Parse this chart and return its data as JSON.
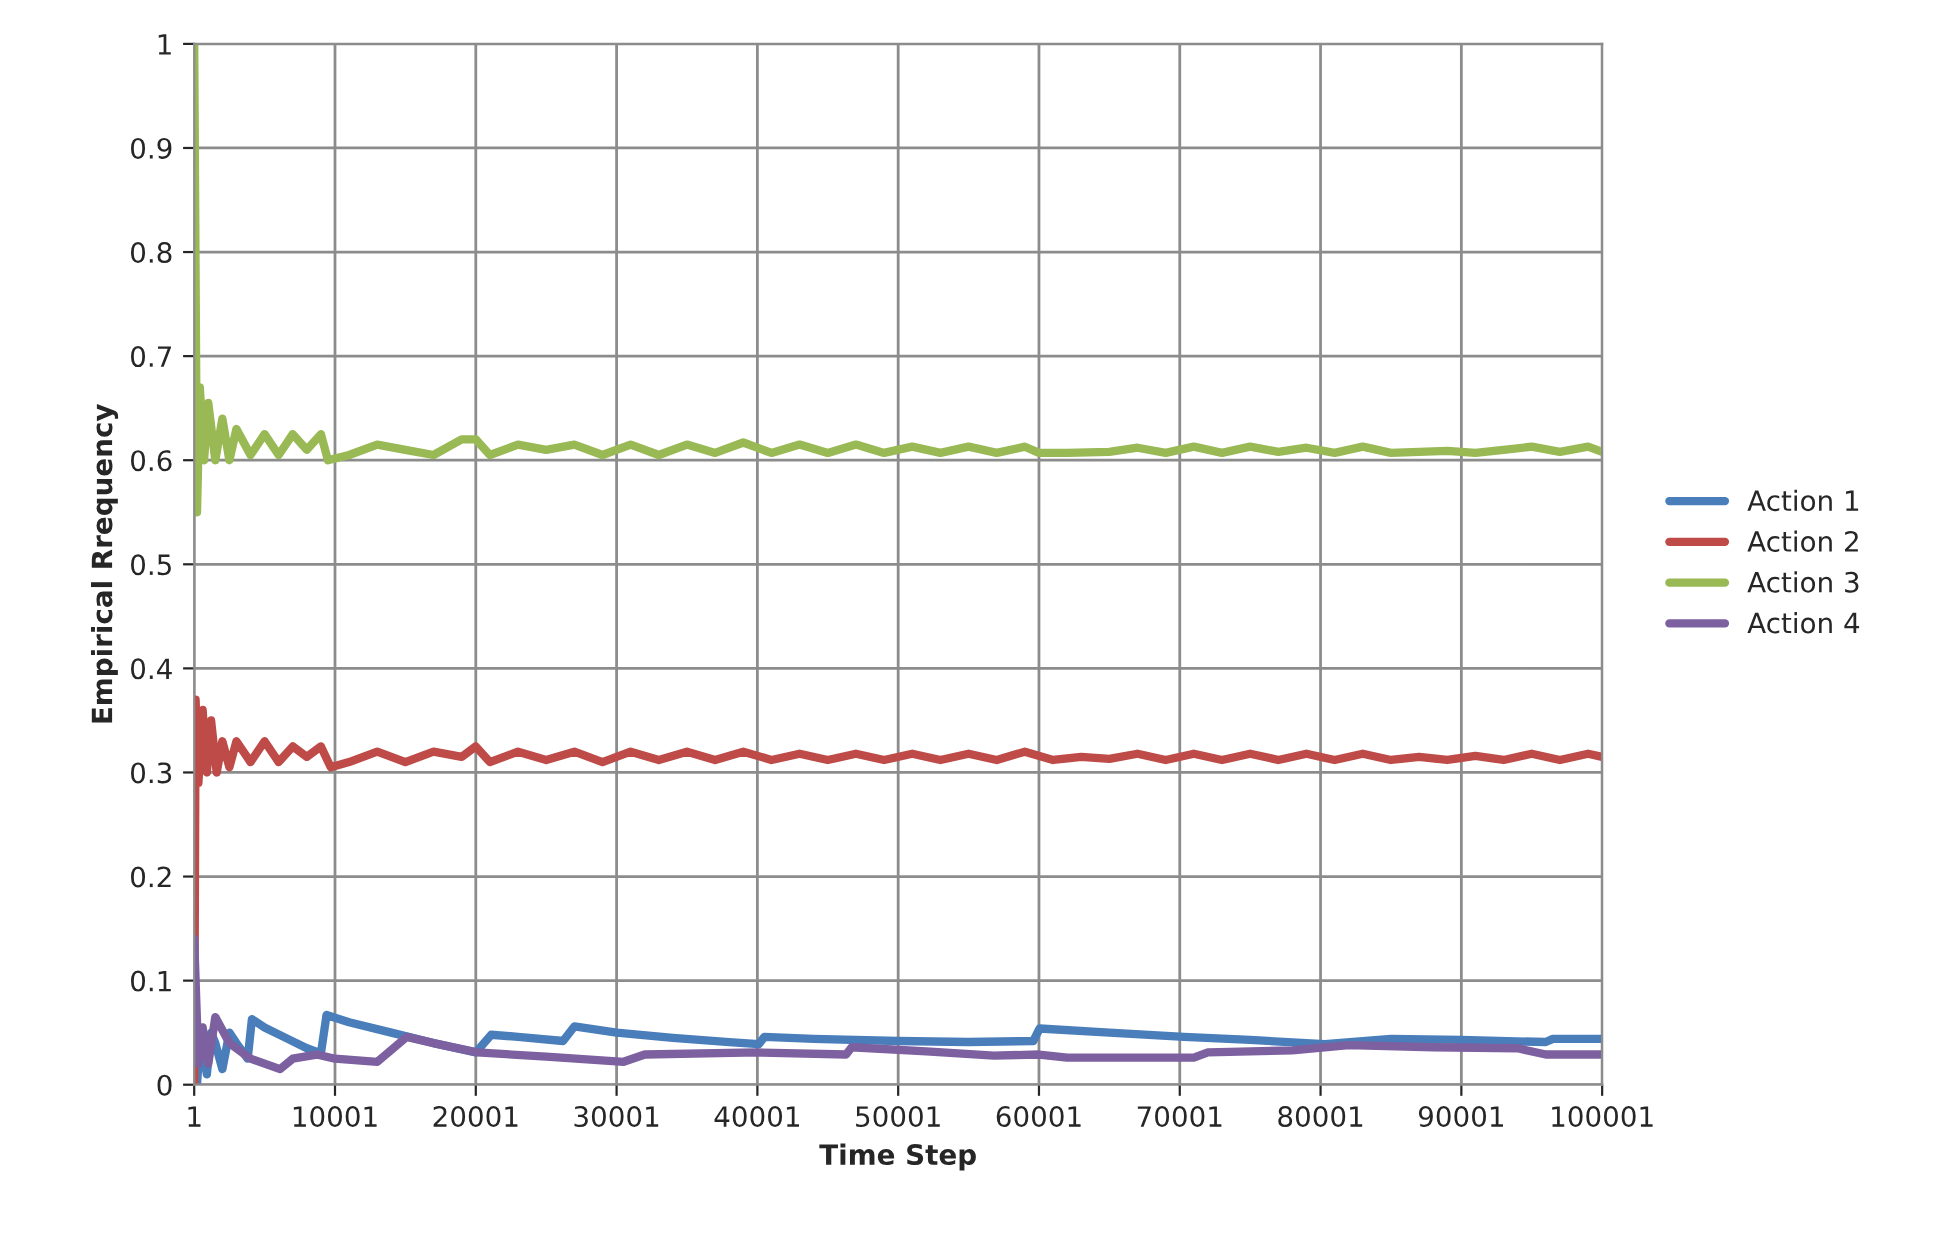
{
  "chart_data": {
    "type": "line",
    "xlabel": "Time Step",
    "ylabel": "Empirical Rrequency",
    "xlim": [
      1,
      100001
    ],
    "xticks": [
      1,
      10001,
      20001,
      30001,
      40001,
      50001,
      60001,
      70001,
      80001,
      90001,
      100001
    ],
    "ylim": [
      0,
      1
    ],
    "yticks": [
      0,
      0.1,
      0.2,
      0.3,
      0.4,
      0.5,
      0.6,
      0.7,
      0.8,
      0.9,
      1
    ],
    "grid": true,
    "legend": "right",
    "marker": "none",
    "line_style": "solid",
    "series": [
      {
        "name": "Action 1",
        "color": "#4a7ebb",
        "x": [
          1,
          200,
          400,
          600,
          900,
          1200,
          1500,
          2000,
          2500,
          3000,
          3800,
          4100,
          5000,
          6500,
          8000,
          9000,
          9400,
          11000,
          14000,
          17000,
          20001,
          21100,
          23000,
          26200,
          27000,
          30000,
          34000,
          38000,
          40100,
          40500,
          44000,
          50000,
          55000,
          59600,
          60050,
          65000,
          70300,
          75000,
          80300,
          85000,
          90000,
          96000,
          96500,
          100001
        ],
        "values": [
          0.0,
          0.0,
          0.04,
          0.035,
          0.01,
          0.05,
          0.04,
          0.015,
          0.05,
          0.04,
          0.025,
          0.063,
          0.055,
          0.045,
          0.035,
          0.03,
          0.067,
          0.06,
          0.05,
          0.04,
          0.031,
          0.048,
          0.046,
          0.042,
          0.056,
          0.05,
          0.045,
          0.041,
          0.039,
          0.046,
          0.044,
          0.042,
          0.041,
          0.042,
          0.054,
          0.05,
          0.046,
          0.043,
          0.039,
          0.044,
          0.043,
          0.041,
          0.044,
          0.044
        ]
      },
      {
        "name": "Action 2",
        "color": "#be4b48",
        "x": [
          1,
          100,
          300,
          600,
          900,
          1200,
          1600,
          2000,
          2500,
          3000,
          4000,
          5000,
          6000,
          7000,
          8000,
          9000,
          9700,
          11000,
          13000,
          15000,
          17000,
          19000,
          20001,
          21000,
          23000,
          25000,
          27000,
          29000,
          31000,
          33000,
          35000,
          37000,
          39000,
          41000,
          43000,
          45000,
          47000,
          49000,
          51000,
          53000,
          55000,
          57000,
          59000,
          61000,
          63000,
          65000,
          67000,
          69000,
          71000,
          73000,
          75000,
          77000,
          79000,
          81000,
          83000,
          85000,
          87000,
          89000,
          91000,
          93000,
          95000,
          97000,
          99000,
          100001
        ],
        "values": [
          0.0,
          0.37,
          0.29,
          0.36,
          0.3,
          0.35,
          0.3,
          0.33,
          0.305,
          0.33,
          0.31,
          0.33,
          0.31,
          0.325,
          0.315,
          0.325,
          0.305,
          0.31,
          0.32,
          0.31,
          0.32,
          0.315,
          0.325,
          0.31,
          0.32,
          0.312,
          0.32,
          0.31,
          0.32,
          0.312,
          0.32,
          0.312,
          0.32,
          0.312,
          0.318,
          0.312,
          0.318,
          0.312,
          0.318,
          0.312,
          0.318,
          0.312,
          0.32,
          0.312,
          0.315,
          0.313,
          0.318,
          0.312,
          0.318,
          0.312,
          0.318,
          0.312,
          0.318,
          0.312,
          0.318,
          0.312,
          0.315,
          0.312,
          0.316,
          0.312,
          0.318,
          0.312,
          0.318,
          0.315
        ]
      },
      {
        "name": "Action 3",
        "color": "#98b954",
        "x": [
          1,
          200,
          400,
          700,
          1000,
          1500,
          2000,
          2500,
          3000,
          4000,
          5000,
          6000,
          7000,
          8000,
          9000,
          9500,
          11000,
          13000,
          15000,
          17000,
          19000,
          20001,
          21000,
          23000,
          25000,
          27000,
          29000,
          31000,
          33000,
          35000,
          37000,
          39000,
          41000,
          43000,
          45000,
          47000,
          49000,
          51000,
          53000,
          55000,
          57000,
          59000,
          60001,
          62000,
          65000,
          67000,
          69000,
          71000,
          73000,
          75000,
          77000,
          79000,
          81000,
          83000,
          85000,
          87000,
          89000,
          91000,
          93000,
          95000,
          97000,
          99000,
          100001
        ],
        "values": [
          1.0,
          0.55,
          0.67,
          0.6,
          0.655,
          0.6,
          0.64,
          0.6,
          0.63,
          0.605,
          0.625,
          0.605,
          0.625,
          0.61,
          0.625,
          0.6,
          0.605,
          0.615,
          0.61,
          0.605,
          0.62,
          0.62,
          0.605,
          0.615,
          0.61,
          0.615,
          0.605,
          0.615,
          0.605,
          0.615,
          0.607,
          0.617,
          0.607,
          0.615,
          0.607,
          0.615,
          0.607,
          0.613,
          0.607,
          0.613,
          0.607,
          0.613,
          0.607,
          0.607,
          0.608,
          0.612,
          0.607,
          0.613,
          0.607,
          0.613,
          0.608,
          0.612,
          0.607,
          0.613,
          0.607,
          0.608,
          0.609,
          0.607,
          0.61,
          0.613,
          0.608,
          0.613,
          0.608
        ]
      },
      {
        "name": "Action 4",
        "color": "#7d60a0",
        "x": [
          1,
          300,
          600,
          1000,
          1500,
          2500,
          4000,
          6100,
          7000,
          8700,
          10000,
          13000,
          15100,
          17000,
          20100,
          25000,
          30500,
          32000,
          40000,
          46300,
          46700,
          52000,
          56800,
          60000,
          62000,
          71000,
          72000,
          78000,
          82000,
          88000,
          94000,
          96000,
          100001
        ],
        "values": [
          0.14,
          0.02,
          0.055,
          0.02,
          0.065,
          0.04,
          0.025,
          0.015,
          0.025,
          0.029,
          0.025,
          0.022,
          0.046,
          0.04,
          0.031,
          0.027,
          0.022,
          0.029,
          0.031,
          0.029,
          0.036,
          0.032,
          0.028,
          0.029,
          0.026,
          0.026,
          0.031,
          0.033,
          0.038,
          0.036,
          0.035,
          0.029,
          0.029
        ]
      }
    ]
  }
}
